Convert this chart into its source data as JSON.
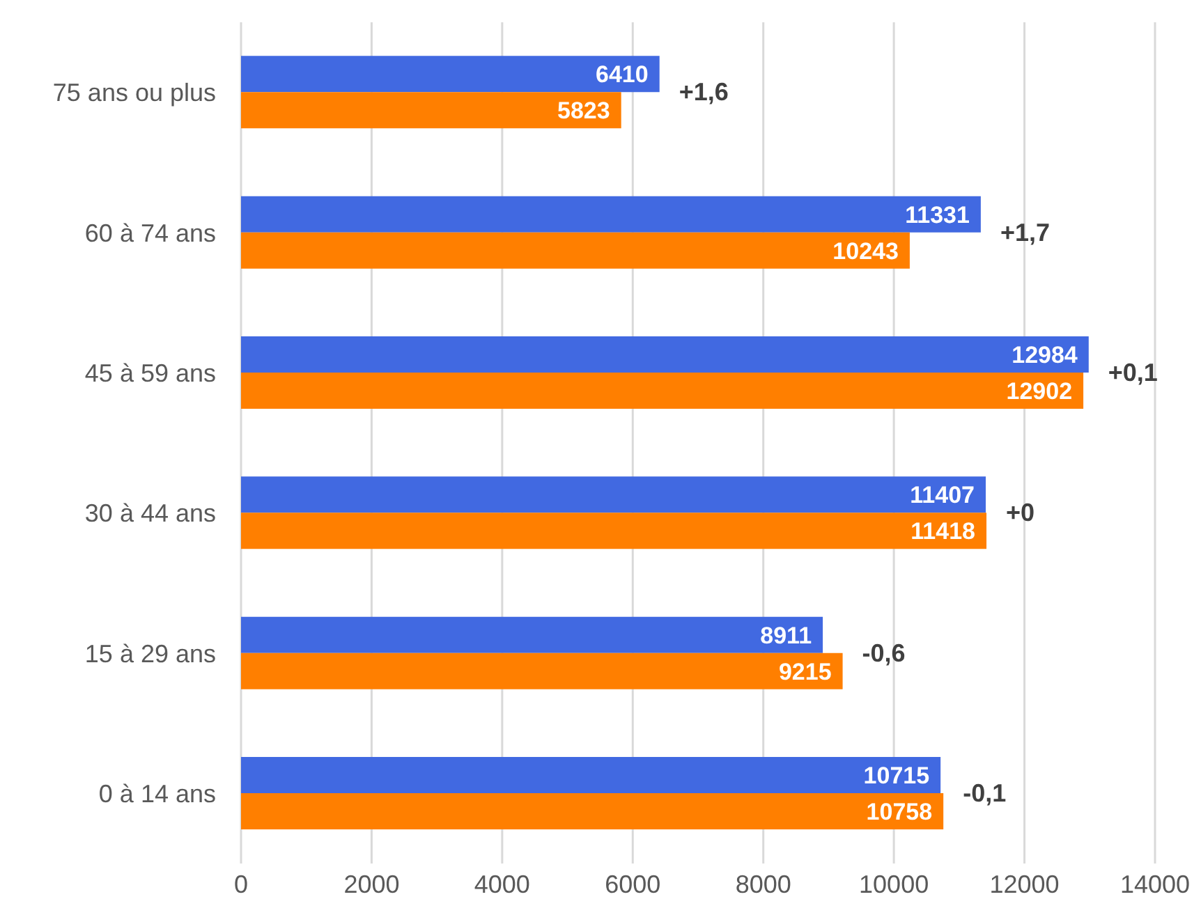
{
  "chart_data": {
    "type": "bar",
    "orientation": "horizontal",
    "categories": [
      "75 ans ou plus",
      "60 à 74 ans",
      "45 à 59 ans",
      "30 à 44 ans",
      "15 à 29 ans",
      "0 à 14 ans"
    ],
    "series": [
      {
        "color": "#4169e1",
        "values": [
          6410,
          11331,
          12984,
          11407,
          8911,
          10715
        ]
      },
      {
        "color": "#ff7f00",
        "values": [
          5823,
          10243,
          12902,
          11418,
          9215,
          10758
        ]
      }
    ],
    "xlim": [
      0,
      14000
    ],
    "xticks": [
      0,
      2000,
      4000,
      6000,
      8000,
      10000,
      12000,
      14000
    ],
    "grid": "x",
    "legend": false,
    "data_labels": true,
    "annotations": [
      "+1,6",
      "+1,7",
      "+0,1",
      "+0",
      "-0,6",
      "-0,1"
    ]
  }
}
